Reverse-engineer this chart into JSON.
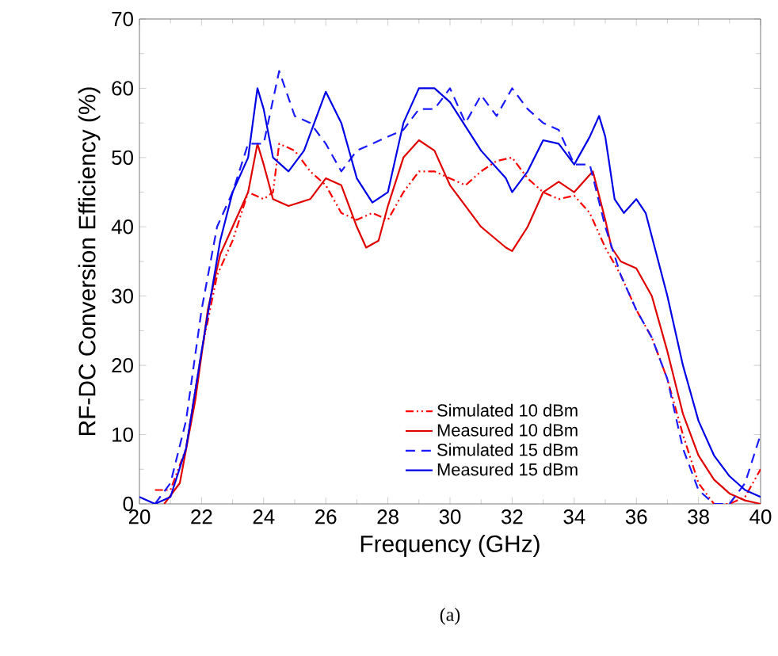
{
  "chart_data": {
    "type": "line",
    "xlabel": "Frequency (GHz)",
    "ylabel": "RF-DC Conversion Efficiency (%)",
    "xlim": [
      20,
      40
    ],
    "ylim": [
      0,
      70
    ],
    "xticks": [
      20,
      22,
      24,
      26,
      28,
      30,
      32,
      34,
      36,
      38,
      40
    ],
    "yticks": [
      0,
      10,
      20,
      30,
      40,
      50,
      60,
      70
    ],
    "legend": "bottom right",
    "annotations": [
      "(a)"
    ],
    "series": [
      {
        "name": "Simulated 10 dBm",
        "color": "#ff0000",
        "line_style": "dashdotdot",
        "x": [
          20.5,
          21,
          21.5,
          22,
          22.5,
          23,
          23.5,
          24,
          24.3,
          24.5,
          25,
          25.5,
          26,
          26.5,
          27,
          27.5,
          28,
          28.5,
          29,
          29.5,
          30,
          30.5,
          31,
          31.5,
          32,
          32.5,
          33,
          33.5,
          34,
          34.5,
          35,
          35.5,
          36,
          36.5,
          37,
          37.5,
          38,
          38.5,
          39,
          39.5,
          40
        ],
        "values": [
          2,
          2,
          8,
          22,
          33,
          38,
          45,
          44,
          45,
          52,
          51,
          48,
          46,
          42,
          41,
          42,
          41,
          45,
          48,
          48,
          47,
          46,
          48,
          49.5,
          50,
          47,
          45,
          44,
          44.5,
          42,
          37,
          33,
          28,
          24,
          18,
          10,
          3,
          0,
          0,
          1,
          5
        ]
      },
      {
        "name": "Measured 10 dBm",
        "color": "#e00000",
        "line_style": "solid",
        "x": [
          20.8,
          21.3,
          21.8,
          22.2,
          22.6,
          23,
          23.5,
          23.8,
          24,
          24.3,
          24.8,
          25.5,
          26,
          26.5,
          27,
          27.3,
          27.7,
          28,
          28.5,
          29,
          29.5,
          30,
          31,
          31.8,
          32,
          32.5,
          33,
          33.5,
          34,
          34.6,
          35,
          35.2,
          35.5,
          36,
          36.5,
          37,
          37.5,
          38,
          38.5,
          39,
          39.5,
          40
        ],
        "values": [
          0,
          3,
          15,
          28,
          36,
          40,
          45,
          52,
          49,
          44,
          43,
          44,
          47,
          46,
          40,
          37,
          38,
          43,
          50,
          52.5,
          51,
          46,
          40,
          37,
          36.5,
          40,
          45,
          46.5,
          45,
          48,
          41,
          37,
          35,
          34,
          30,
          22,
          13,
          7,
          3.5,
          1.5,
          0.5,
          0
        ]
      },
      {
        "name": "Simulated 15 dBm",
        "color": "#1a1aff",
        "line_style": "dashed",
        "x": [
          20.5,
          21,
          21.5,
          22,
          22.5,
          23,
          23.5,
          24,
          24.5,
          25,
          25.5,
          26,
          26.5,
          27,
          27.5,
          28,
          28.5,
          29,
          29.5,
          30,
          30.5,
          31,
          31.5,
          32,
          32.5,
          33,
          33.5,
          34,
          34.5,
          35,
          35.5,
          36,
          36.5,
          37,
          37.5,
          38,
          38.5,
          39,
          39.5,
          40
        ],
        "values": [
          0,
          3,
          12,
          28,
          40,
          45,
          52,
          52,
          62.5,
          56,
          55,
          52,
          48,
          51,
          52,
          53,
          54,
          57,
          57,
          60,
          55,
          59,
          56,
          60,
          57,
          55,
          54,
          49,
          49,
          40,
          33,
          28,
          24,
          18,
          8,
          2,
          0,
          0,
          3,
          10
        ]
      },
      {
        "name": "Measured 15 dBm",
        "color": "#0000e6",
        "line_style": "solid",
        "x": [
          20,
          20.5,
          21,
          21.5,
          22,
          22.3,
          22.6,
          23,
          23.5,
          23.8,
          24,
          24.3,
          24.8,
          25.3,
          26,
          26.5,
          27,
          27.5,
          28,
          28.5,
          29,
          29.5,
          30,
          31,
          31.8,
          32,
          32.5,
          33,
          33.5,
          34,
          34.5,
          34.8,
          35,
          35.3,
          35.6,
          36,
          36.3,
          37,
          37.5,
          38,
          38.5,
          39,
          39.5,
          40
        ],
        "values": [
          1,
          0,
          1,
          8,
          22,
          30,
          38,
          45,
          50,
          60,
          57,
          50,
          48,
          51,
          59.5,
          55,
          47,
          43.5,
          45,
          55,
          60,
          60,
          58,
          51,
          47,
          45,
          48,
          52.5,
          52,
          49,
          53,
          56,
          53,
          44,
          42,
          44,
          42,
          30,
          20,
          12,
          7,
          4,
          2,
          1
        ]
      }
    ]
  }
}
